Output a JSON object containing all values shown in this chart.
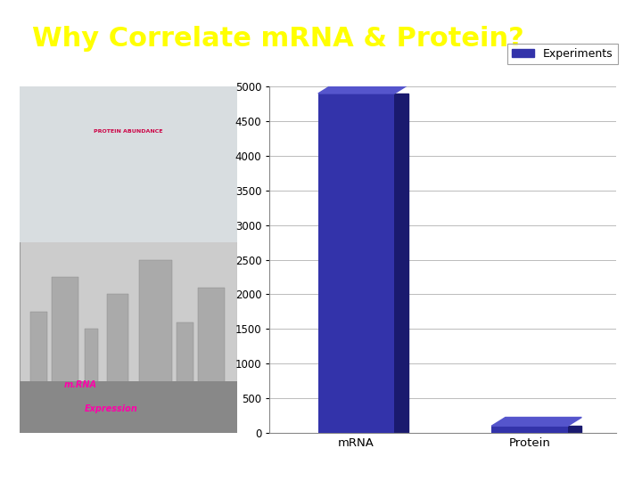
{
  "title": "Why Correlate mRNA & Protein?",
  "title_bg_color": "#2E3192",
  "title_text_color": "#FFFF00",
  "title_fontsize": 22,
  "categories": [
    "mRNA",
    "Protein"
  ],
  "values": [
    4900,
    100
  ],
  "bar_color_face": "#3333AA",
  "bar_color_side": "#1A1A6E",
  "bar_color_top": "#5555CC",
  "legend_label": "Experiments",
  "legend_color": "#3333AA",
  "ylim": [
    0,
    5000
  ],
  "yticks": [
    0,
    500,
    1000,
    1500,
    2000,
    2500,
    3000,
    3500,
    4000,
    4500,
    5000
  ],
  "bg_color": "#FFFFFF",
  "chart_bg_color": "#FFFFFF",
  "grid_color": "#BBBBBB",
  "figure_width": 7.2,
  "figure_height": 5.4,
  "dpi": 100
}
